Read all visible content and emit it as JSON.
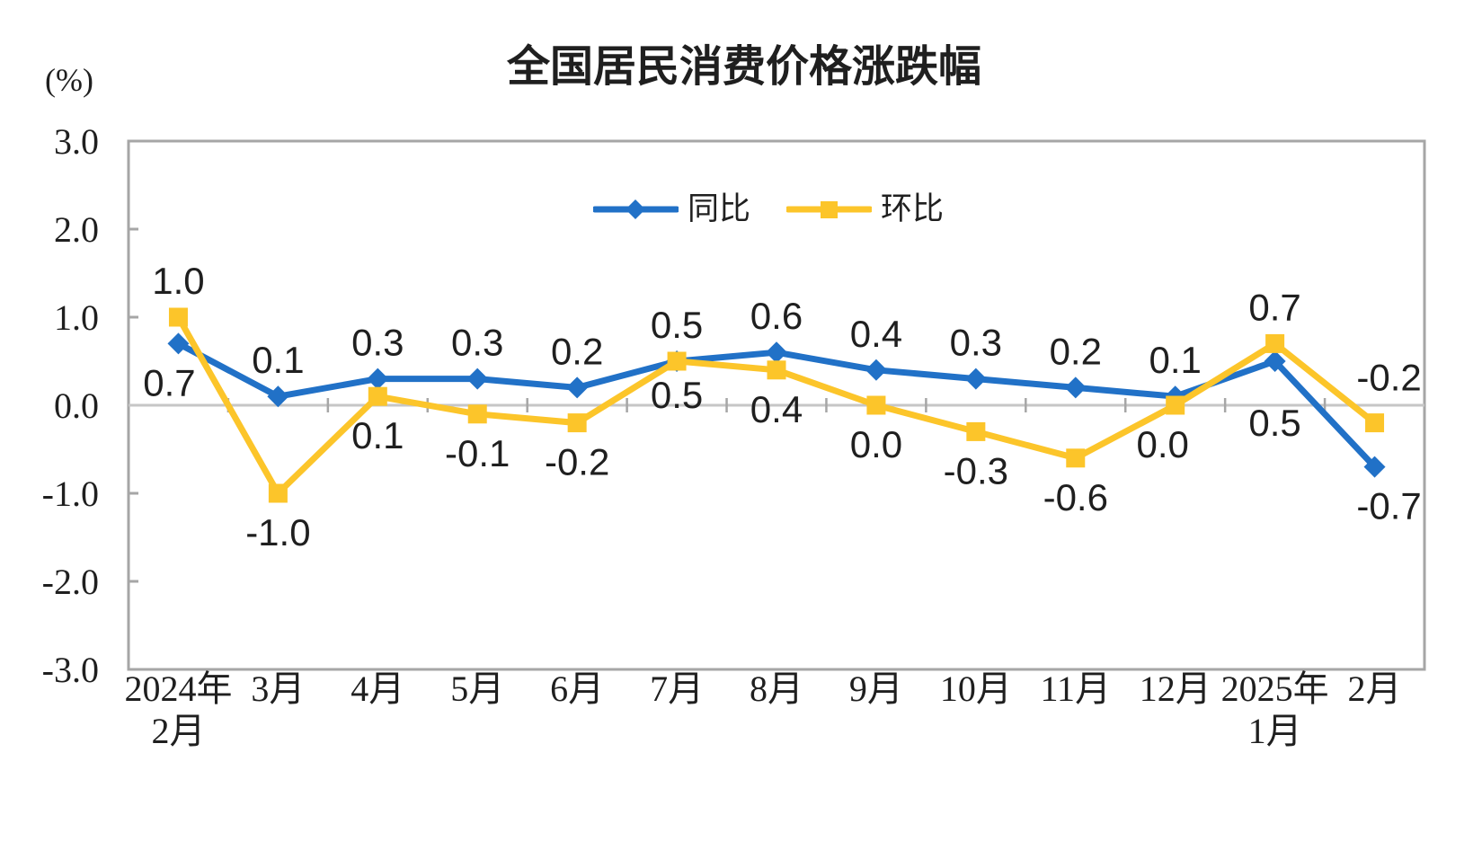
{
  "page": {
    "background_color": "#FFFFFF"
  },
  "chart_data": {
    "type": "line",
    "title": "全国居民消费价格涨跌幅",
    "unit_label": "(%)",
    "ylabel": "(%)",
    "ylim": [
      -3.0,
      3.0
    ],
    "yticks": [
      3.0,
      2.0,
      1.0,
      0.0,
      -1.0,
      -2.0,
      -3.0
    ],
    "grid": "zero-line-only",
    "legend_position": "top-center-inside",
    "text_color": "#1F1F1F",
    "axis_color": "#A6A6A6",
    "zero_line_color": "#C6C6C6",
    "categories": [
      [
        "2024年",
        "2月"
      ],
      [
        "3月"
      ],
      [
        "4月"
      ],
      [
        "5月"
      ],
      [
        "6月"
      ],
      [
        "7月"
      ],
      [
        "8月"
      ],
      [
        "9月"
      ],
      [
        "10月"
      ],
      [
        "11月"
      ],
      [
        "12月"
      ],
      [
        "2025年",
        "1月"
      ],
      [
        "2月"
      ]
    ],
    "series": [
      {
        "id": "yoy",
        "name": "同比",
        "color": "#2171C7",
        "marker": "diamond",
        "values": [
          0.7,
          0.1,
          0.3,
          0.3,
          0.2,
          0.5,
          0.6,
          0.4,
          0.3,
          0.2,
          0.1,
          0.5,
          -0.7
        ],
        "label_positions": [
          "below",
          "above",
          "above",
          "above",
          "above",
          "above",
          "above",
          "above",
          "above",
          "above",
          "above",
          "below",
          "below"
        ],
        "label_dx": [
          -10,
          0,
          0,
          0,
          0,
          0,
          0,
          0,
          0,
          0,
          0,
          0,
          16
        ],
        "label_dy": [
          0,
          0,
          0,
          0,
          0,
          0,
          0,
          0,
          0,
          0,
          0,
          25,
          0
        ]
      },
      {
        "id": "mom",
        "name": "环比",
        "color": "#FCC52A",
        "marker": "square",
        "values": [
          1.0,
          -1.0,
          0.1,
          -0.1,
          -0.2,
          0.5,
          0.4,
          0.0,
          -0.3,
          -0.6,
          0.0,
          0.7,
          -0.2
        ],
        "label_positions": [
          "above",
          "below",
          "below",
          "below",
          "below",
          "below",
          "below",
          "below",
          "below",
          "below",
          "below",
          "above",
          "above"
        ],
        "label_dx": [
          0,
          0,
          0,
          0,
          0,
          0,
          0,
          0,
          0,
          0,
          -14,
          0,
          16
        ],
        "label_dy": [
          0,
          0,
          0,
          0,
          0,
          -6,
          0,
          0,
          0,
          0,
          0,
          0,
          -10
        ]
      }
    ]
  }
}
